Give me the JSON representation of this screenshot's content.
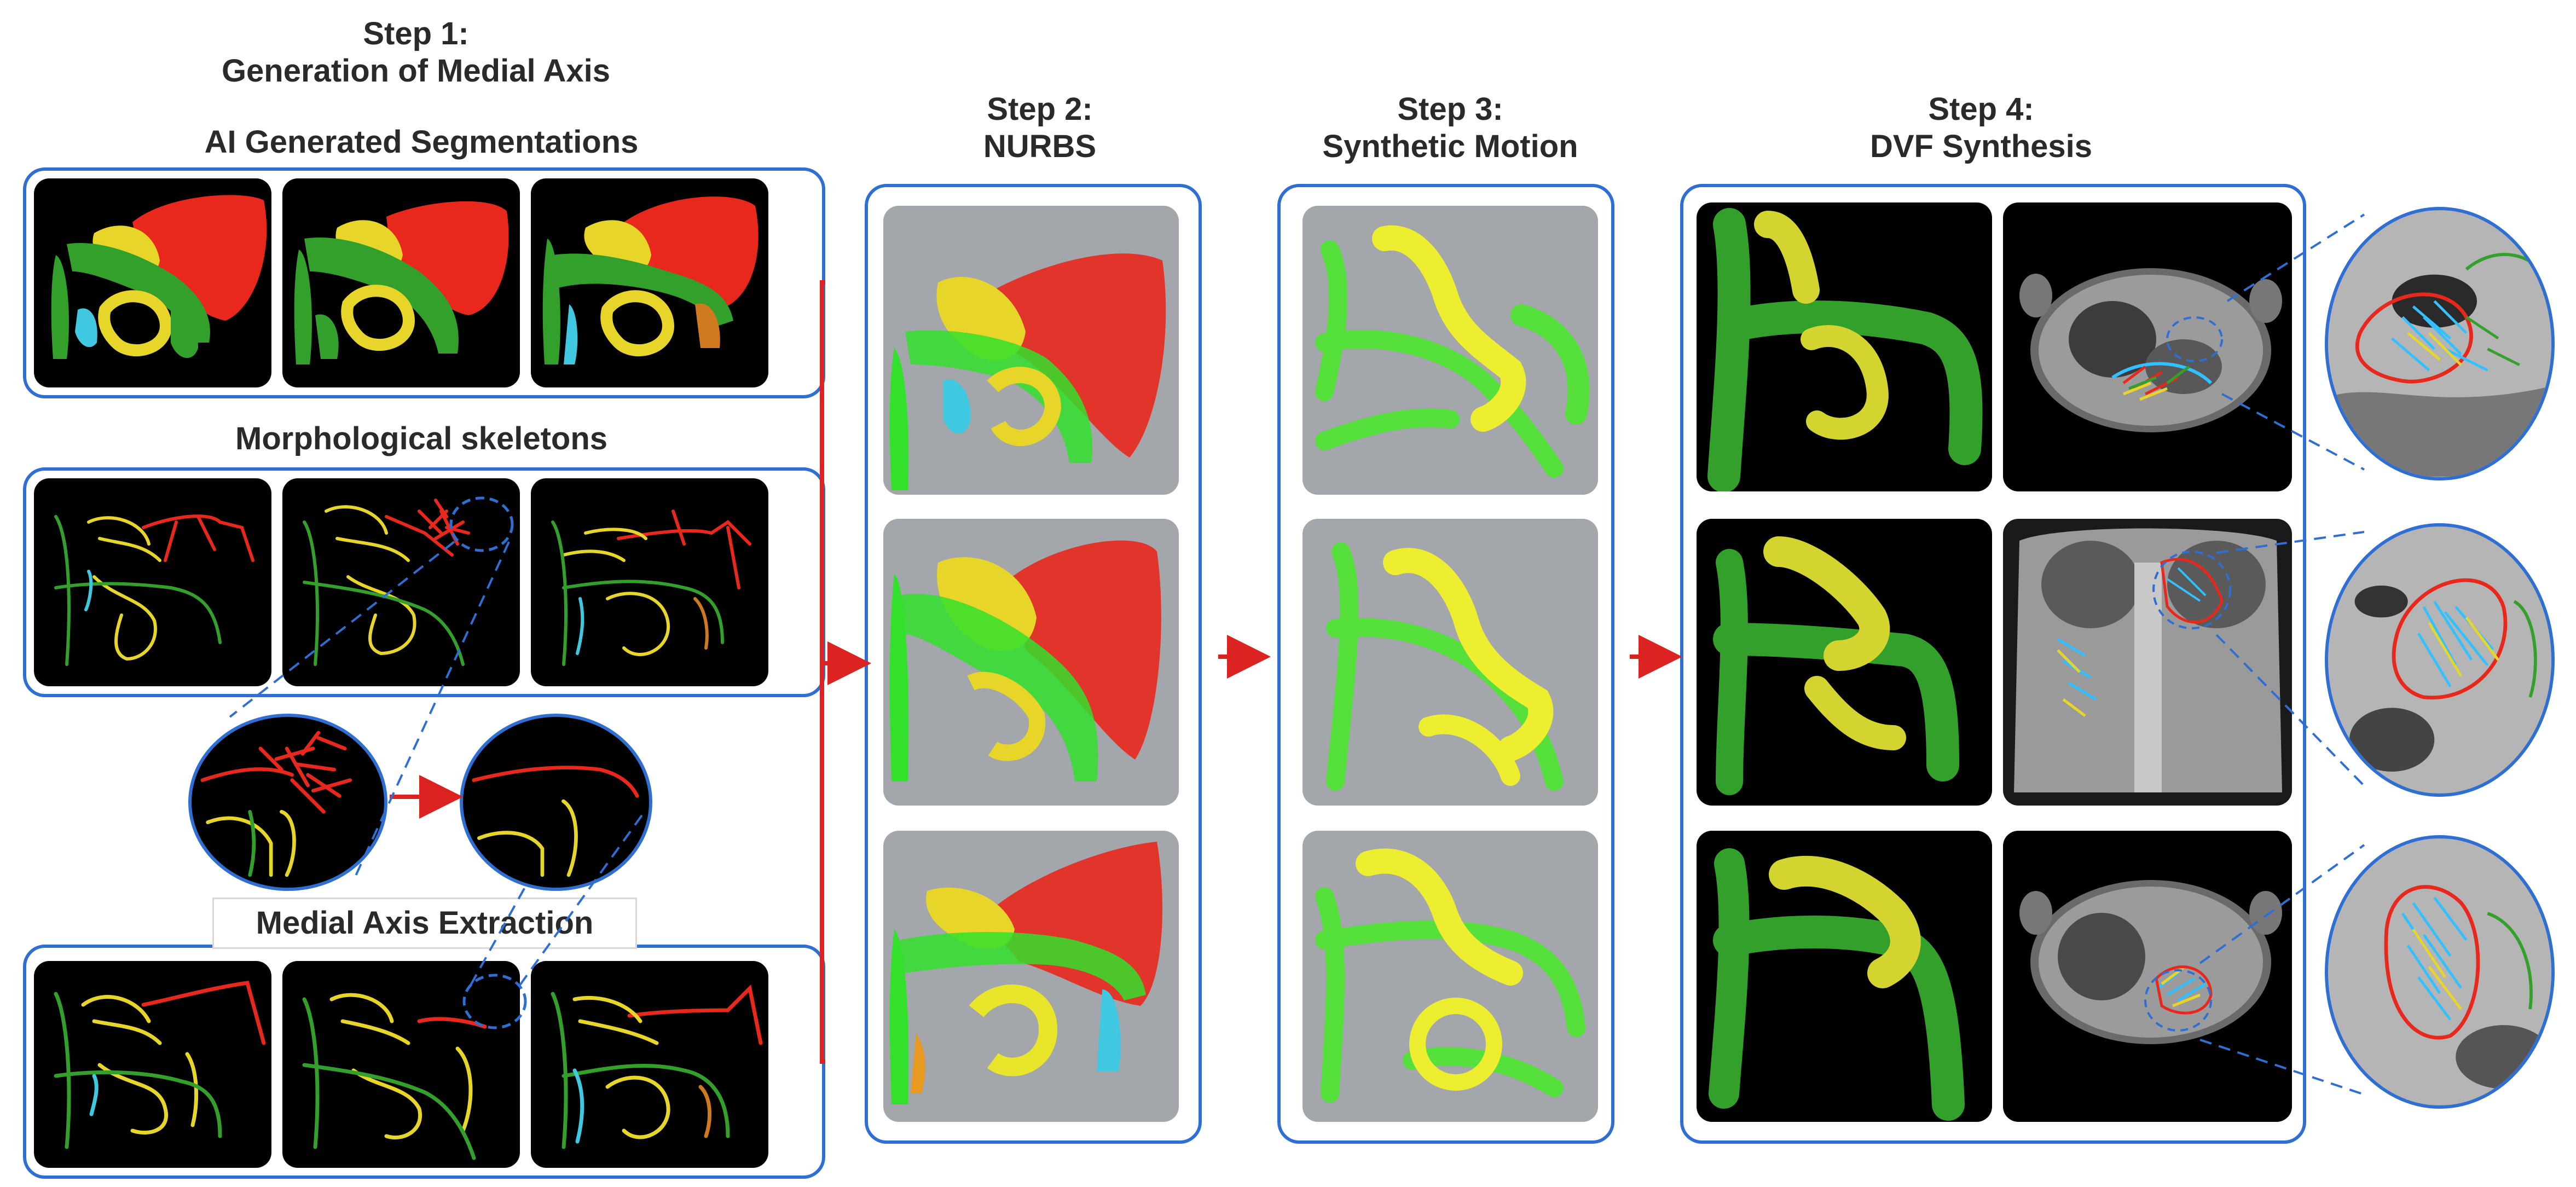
{
  "step1": {
    "title_line1": "Step 1:",
    "title_line2": "Generation of Medial Axis",
    "seg_label": "AI Generated Segmentations",
    "skel_label": "Morphological skeletons",
    "medial_label": "Medial Axis Extraction"
  },
  "step2": {
    "title_line1": "Step 2:",
    "title_line2": "NURBS"
  },
  "step3": {
    "title_line1": "Step 3:",
    "title_line2": "Synthetic Motion"
  },
  "step4": {
    "title_line1": "Step 4:",
    "title_line2": "DVF Synthesis"
  },
  "colors": {
    "frame": "#2f6fd3",
    "flow_arrow": "#dd2222",
    "liver": "#e8281c",
    "stomach": "#e8d52a",
    "bowel": "#33a02c",
    "duodenum": "#3fc8e0",
    "mesh_background": "#a3a6ab"
  }
}
